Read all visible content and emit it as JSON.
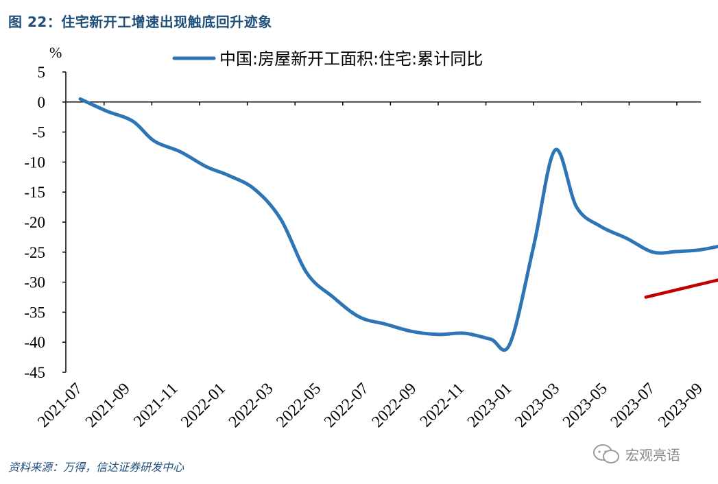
{
  "figure": {
    "title": "图 22：住宅新开工增速出现触底回升迹象",
    "source": "资料来源：万得，信达证券研发中心",
    "watermark": "宏观亮语"
  },
  "chart_data": {
    "type": "line",
    "ylabel": "%",
    "ylim": [
      -45,
      5
    ],
    "yticks": [
      5,
      0,
      -5,
      -10,
      -15,
      -20,
      -25,
      -30,
      -35,
      -40,
      -45
    ],
    "xlabels": [
      "2021-07",
      "2021-09",
      "2021-11",
      "2022-01",
      "2022-03",
      "2022-05",
      "2022-07",
      "2022-09",
      "2022-11",
      "2023-01",
      "2023-03",
      "2023-05",
      "2023-07",
      "2023-09"
    ],
    "series": [
      {
        "name": "中国:房屋新开工面积:住宅:累计同比",
        "color": "#2e75b6",
        "points": [
          {
            "x": 0.0,
            "y": 0.5
          },
          {
            "x": 0.55,
            "y": -1.5
          },
          {
            "x": 1.1,
            "y": -3.2
          },
          {
            "x": 1.55,
            "y": -6.5
          },
          {
            "x": 2.1,
            "y": -8.3
          },
          {
            "x": 2.65,
            "y": -10.8
          },
          {
            "x": 3.1,
            "y": -12.2
          },
          {
            "x": 3.65,
            "y": -14.5
          },
          {
            "x": 4.2,
            "y": -19.5
          },
          {
            "x": 4.75,
            "y": -28.5
          },
          {
            "x": 5.3,
            "y": -32.5
          },
          {
            "x": 5.85,
            "y": -35.8
          },
          {
            "x": 6.4,
            "y": -37.0
          },
          {
            "x": 6.95,
            "y": -38.2
          },
          {
            "x": 7.5,
            "y": -38.7
          },
          {
            "x": 8.05,
            "y": -38.5
          },
          {
            "x": 8.6,
            "y": -39.5
          },
          {
            "x": 9.0,
            "y": -40.3
          },
          {
            "x": 9.5,
            "y": -24.0
          },
          {
            "x": 9.95,
            "y": -8.0
          },
          {
            "x": 10.4,
            "y": -17.5
          },
          {
            "x": 10.9,
            "y": -20.7
          },
          {
            "x": 11.45,
            "y": -22.7
          },
          {
            "x": 12.0,
            "y": -25.0
          },
          {
            "x": 12.5,
            "y": -24.9
          },
          {
            "x": 13.0,
            "y": -24.6
          },
          {
            "x": 13.45,
            "y": -23.9
          }
        ]
      }
    ],
    "annotation": {
      "type": "arrow",
      "color": "#c00000",
      "from": {
        "x": 11.85,
        "y": -32.5
      },
      "to": {
        "x": 13.7,
        "y": -29.0
      }
    },
    "legend": "top"
  }
}
